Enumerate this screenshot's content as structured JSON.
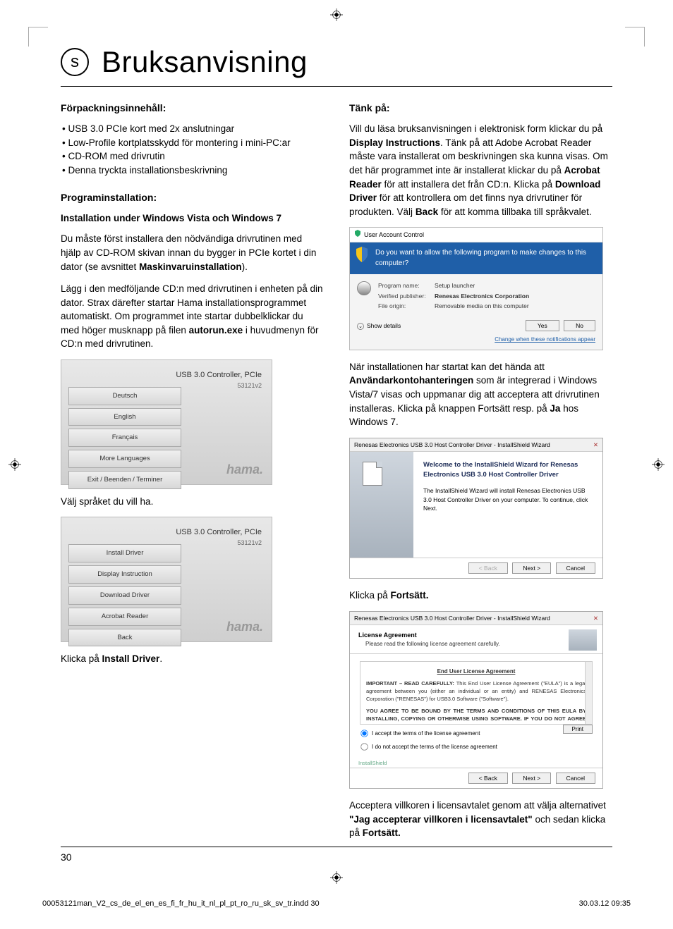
{
  "langBadge": "s",
  "title": "Bruksanvisning",
  "leftCol": {
    "h1": "Förpackningsinnehåll:",
    "bullets": [
      "• USB 3.0 PCIe kort med 2x anslutningar",
      "• Low-Profile kortplatsskydd för montering i mini-PC:ar",
      "• CD-ROM med drivrutin",
      "• Denna tryckta installationsbeskrivning"
    ],
    "h2": "Programinstallation:",
    "h3": "Installation under Windows Vista och Windows 7",
    "p1a": "Du måste först installera den nödvändiga drivrutinen med hjälp av CD-ROM skivan innan du bygger in PCIe kortet i din dator (se avsnittet ",
    "p1b": "Maskinvaruinstallation",
    "p1c": ").",
    "p2a": "Lägg i den medföljande CD:n med drivrutinen i enheten på din dator. Strax därefter startar Hama installationsprogrammet automatiskt. Om programmet inte startar dubbelklickar du med höger musknapp på filen ",
    "p2b": "autorun.exe",
    "p2c": " i huvudmenyn för CD:n med drivrutinen.",
    "shot1": {
      "product": "USB 3.0 Controller, PCIe",
      "prodnum": "53121v2",
      "buttons": [
        "Deutsch",
        "English",
        "Français",
        "More Languages",
        "Exit / Beenden / Terminer"
      ],
      "logo": "hama."
    },
    "cap1": "Välj språket du vill ha.",
    "shot2": {
      "product": "USB 3.0 Controller, PCIe",
      "prodnum": "53121v2",
      "buttons": [
        "Install Driver",
        "Display Instruction",
        "Download Driver",
        "Acrobat Reader",
        "Back"
      ],
      "logo": "hama."
    },
    "cap2a": "Klicka på ",
    "cap2b": "Install Driver",
    "cap2c": "."
  },
  "rightCol": {
    "h1": "Tänk på:",
    "p1parts": [
      {
        "t": "Vill du läsa bruksanvisningen i elektronisk form klickar du på ",
        "b": false
      },
      {
        "t": "Display Instructions",
        "b": true
      },
      {
        "t": ". Tänk på att Adobe Acrobat Reader måste vara installerat om beskrivningen ska kunna visas. Om det här programmet inte är installerat klickar du på ",
        "b": false
      },
      {
        "t": "Acrobat Reader",
        "b": true
      },
      {
        "t": " för att installera det från CD:n. Klicka på ",
        "b": false
      },
      {
        "t": "Download Driver",
        "b": true
      },
      {
        "t": " för att kontrollera om det finns nya drivrutiner för produkten. Välj ",
        "b": false
      },
      {
        "t": "Back",
        "b": true
      },
      {
        "t": " för att komma tillbaka till språkvalet.",
        "b": false
      }
    ],
    "uac": {
      "title": "User Account Control",
      "banner": "Do you want to allow the following program to make changes to this computer?",
      "progLabel": "Program name:",
      "progVal": "Setup launcher",
      "pubLabel": "Verified publisher:",
      "pubVal": "Renesas Electronics Corporation",
      "origLabel": "File origin:",
      "origVal": "Removable media on this computer",
      "details": "Show details",
      "yes": "Yes",
      "no": "No",
      "link": "Change when these notifications appear"
    },
    "p2parts": [
      {
        "t": "När installationen har startat kan det hända att ",
        "b": false
      },
      {
        "t": "Användarkontohanteringen",
        "b": true
      },
      {
        "t": " som är integrerad i Windows Vista/7 visas och uppmanar dig att acceptera att drivrutinen installeras. Klicka på knappen Fortsätt resp. på ",
        "b": false
      },
      {
        "t": "Ja",
        "b": true
      },
      {
        "t": " hos Windows 7.",
        "b": false
      }
    ],
    "wiz1": {
      "titlebar": "Renesas Electronics USB 3.0 Host Controller Driver - InstallShield Wizard",
      "welcome1": "Welcome to the InstallShield Wizard for Renesas Electronics USB 3.0 Host Controller Driver",
      "welcome2": "The InstallShield Wizard will install Renesas Electronics USB 3.0 Host Controller Driver on your computer. To continue, click Next.",
      "back": "< Back",
      "next": "Next >",
      "cancel": "Cancel"
    },
    "cap3a": "Klicka på ",
    "cap3b": "Fortsätt.",
    "wiz2": {
      "titlebar": "Renesas Electronics USB 3.0 Host Controller Driver - InstallShield Wizard",
      "headT": "License Agreement",
      "headS": "Please read the following license agreement carefully.",
      "eulaTitle": "End User License Agreement",
      "eula1": "IMPORTANT – READ CAREFULLY: This End User License Agreement (\"EULA\") is a legal agreement between you (either an individual or an entity) and RENESAS Electronics Corporation (\"RENESAS\") for USB3.0 Software (\"Software\").",
      "eula2": "YOU AGREE TO BE BOUND BY THE TERMS AND CONDITIONS OF THIS EULA BY INSTALLING, COPYING OR OTHERWISE USING SOFTWARE. IF YOU DO NOT AGREE THE TERMS AND –",
      "accept": "I accept the terms of the license agreement",
      "reject": "I do not accept the terms of the license agreement",
      "print": "Print",
      "ishield": "InstallShield",
      "back": "< Back",
      "next": "Next >",
      "cancel": "Cancel"
    },
    "p3parts": [
      {
        "t": "Acceptera villkoren i licensavtalet genom att välja alternativet ",
        "b": false
      },
      {
        "t": "\"Jag accepterar villkoren i licensavtalet\"",
        "b": true
      },
      {
        "t": " och sedan klicka på ",
        "b": false
      },
      {
        "t": "Fortsätt.",
        "b": true
      }
    ]
  },
  "pageNumber": "30",
  "meta": {
    "file": "00053121man_V2_cs_de_el_en_es_fi_fr_hu_it_nl_pl_pt_ro_ru_sk_sv_tr.indd   30",
    "date": "30.03.12   09:35"
  },
  "colors": {
    "uacBanner": "#1f5fa8",
    "wizSide1": "#cfd6de",
    "wizSide2": "#a8b2bd"
  }
}
